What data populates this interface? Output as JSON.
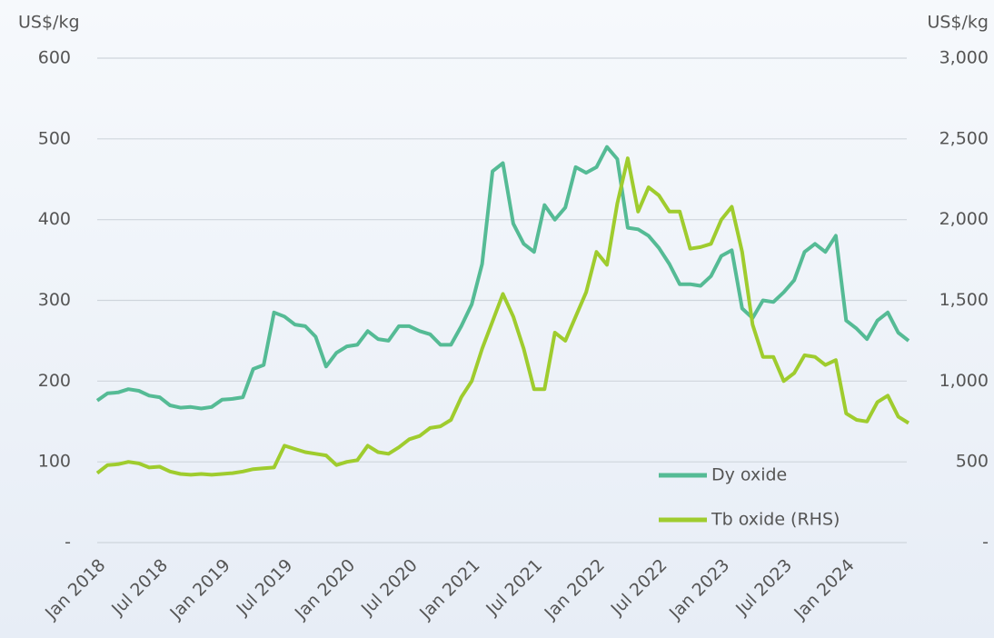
{
  "chart_data": {
    "type": "line",
    "y_label": "US$/kg",
    "y2_label": "US$/kg",
    "x": [
      "2018-01",
      "2018-02",
      "2018-03",
      "2018-04",
      "2018-05",
      "2018-06",
      "2018-07",
      "2018-08",
      "2018-09",
      "2018-10",
      "2018-11",
      "2018-12",
      "2019-01",
      "2019-02",
      "2019-03",
      "2019-04",
      "2019-05",
      "2019-06",
      "2019-07",
      "2019-08",
      "2019-09",
      "2019-10",
      "2019-11",
      "2019-12",
      "2020-01",
      "2020-02",
      "2020-03",
      "2020-04",
      "2020-05",
      "2020-06",
      "2020-07",
      "2020-08",
      "2020-09",
      "2020-10",
      "2020-11",
      "2020-12",
      "2021-01",
      "2021-02",
      "2021-03",
      "2021-04",
      "2021-05",
      "2021-06",
      "2021-07",
      "2021-08",
      "2021-09",
      "2021-10",
      "2021-11",
      "2021-12",
      "2022-01",
      "2022-02",
      "2022-03",
      "2022-04",
      "2022-05",
      "2022-06",
      "2022-07",
      "2022-08",
      "2022-09",
      "2022-10",
      "2022-11",
      "2022-12",
      "2023-01",
      "2023-02",
      "2023-03",
      "2023-04",
      "2023-05",
      "2023-06",
      "2023-07",
      "2023-08",
      "2023-09",
      "2023-10",
      "2023-11",
      "2023-12",
      "2024-01",
      "2024-02",
      "2024-03",
      "2024-04",
      "2024-05",
      "2024-06",
      "2024-07"
    ],
    "series": [
      {
        "name": "Dy oxide",
        "color": "#55bb95",
        "values": [
          176,
          185,
          186,
          190,
          188,
          182,
          180,
          170,
          167,
          168,
          166,
          168,
          177,
          178,
          180,
          215,
          220,
          285,
          280,
          270,
          268,
          255,
          218,
          235,
          243,
          245,
          262,
          252,
          250,
          268,
          268,
          262,
          258,
          245,
          245,
          268,
          295,
          345,
          460,
          470,
          395,
          370,
          360,
          418,
          400,
          415,
          465,
          458,
          465,
          490,
          475,
          390,
          388,
          380,
          365,
          345,
          320,
          320,
          318,
          330,
          355,
          362,
          290,
          278,
          300,
          298,
          310,
          325,
          360,
          370,
          360,
          380,
          275,
          265,
          252,
          275,
          285,
          260,
          250
        ]
      },
      {
        "name": "Tb oxide (RHS)",
        "color": "#9fcc2e",
        "axis": "y2",
        "values": [
          430,
          480,
          485,
          500,
          490,
          465,
          470,
          440,
          425,
          420,
          425,
          420,
          425,
          430,
          440,
          455,
          460,
          465,
          600,
          580,
          560,
          550,
          540,
          480,
          500,
          510,
          600,
          560,
          550,
          590,
          640,
          660,
          710,
          720,
          760,
          900,
          1000,
          1200,
          1370,
          1540,
          1400,
          1200,
          950,
          950,
          1300,
          1250,
          1400,
          1550,
          1800,
          1720,
          2100,
          2380,
          2050,
          2200,
          2150,
          2050,
          2050,
          1820,
          1830,
          1850,
          2000,
          2080,
          1800,
          1350,
          1150,
          1150,
          1000,
          1050,
          1160,
          1150,
          1100,
          1130,
          800,
          760,
          750,
          870,
          910,
          780,
          740
        ]
      }
    ],
    "xlim": [
      "2018-01",
      "2024-07"
    ],
    "xticks": [
      {
        "value": "2018-01",
        "label": "Jan 2018"
      },
      {
        "value": "2018-07",
        "label": "Jul 2018"
      },
      {
        "value": "2019-01",
        "label": "Jan 2019"
      },
      {
        "value": "2019-07",
        "label": "Jul 2019"
      },
      {
        "value": "2020-01",
        "label": "Jan 2020"
      },
      {
        "value": "2020-07",
        "label": "Jul 2020"
      },
      {
        "value": "2021-01",
        "label": "Jan 2021"
      },
      {
        "value": "2021-07",
        "label": "Jul 2021"
      },
      {
        "value": "2022-01",
        "label": "Jan 2022"
      },
      {
        "value": "2022-07",
        "label": "Jul 2022"
      },
      {
        "value": "2023-01",
        "label": "Jan 2023"
      },
      {
        "value": "2023-07",
        "label": "Jul 2023"
      },
      {
        "value": "2024-01",
        "label": "Jan 2024"
      }
    ],
    "ylim": [
      0,
      600
    ],
    "yticks": [
      {
        "value": 0,
        "label": "-"
      },
      100,
      200,
      300,
      400,
      500,
      600
    ],
    "y2lim": [
      0,
      3000
    ],
    "y2ticks": [
      {
        "value": 0,
        "label": "-"
      },
      500,
      {
        "value": 1000,
        "label": "1,000"
      },
      {
        "value": 1500,
        "label": "1,500"
      },
      {
        "value": 2000,
        "label": "2,000"
      },
      {
        "value": 2500,
        "label": "2,500"
      },
      {
        "value": 3000,
        "label": "3,000"
      }
    ],
    "grid": true,
    "legend": "lower right"
  }
}
